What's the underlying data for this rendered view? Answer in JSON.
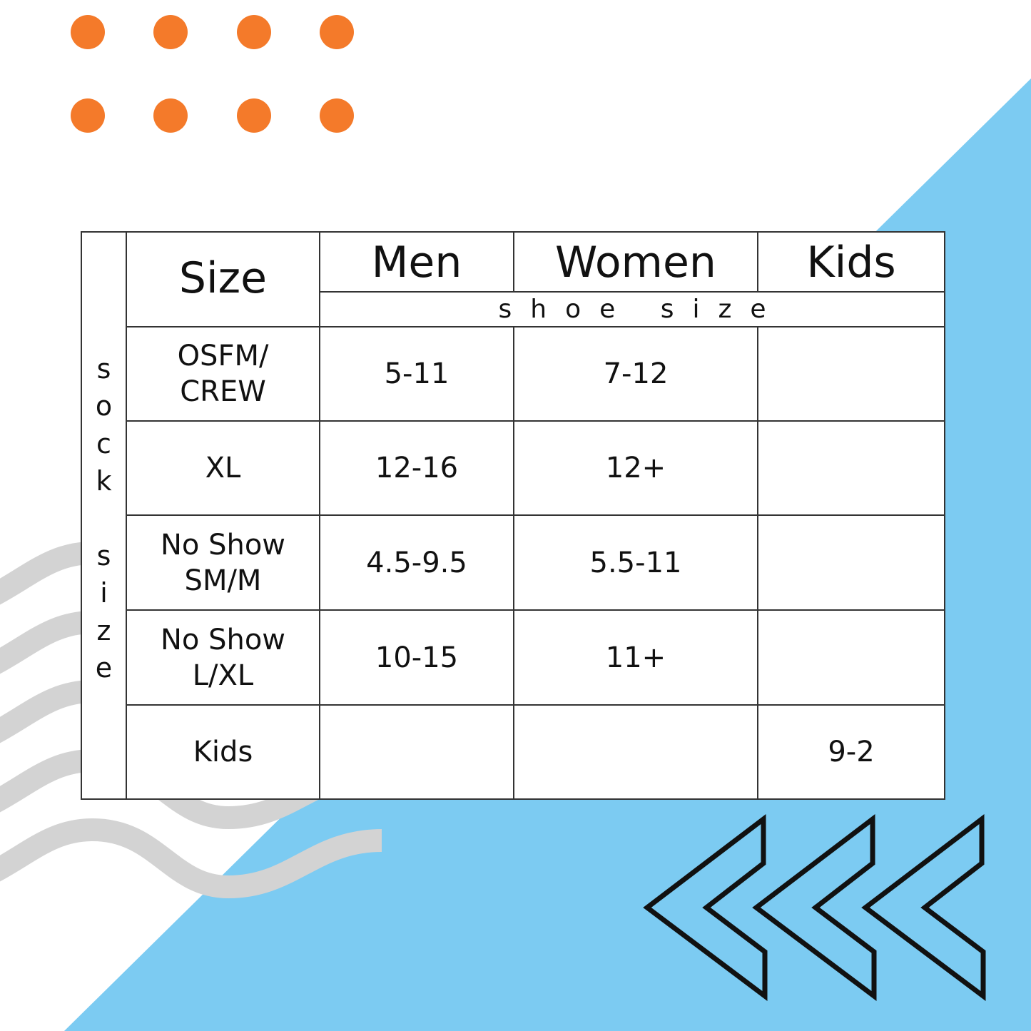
{
  "colors": {
    "dots": "#f47a2a",
    "triangle": "#7ccbf2",
    "waves": "#d3d3d3",
    "chevrons": "#111111",
    "grid": "#333333"
  },
  "side_label": [
    "s",
    "o",
    "c",
    "k",
    "",
    "s",
    "i",
    "z",
    "e"
  ],
  "header": {
    "size": "Size",
    "men": "Men",
    "women": "Women",
    "kids": "Kids",
    "subheader": "shoe size"
  },
  "rows": [
    {
      "size": "OSFM/ CREW",
      "men": "5-11",
      "women": "7-12",
      "kids": ""
    },
    {
      "size": "XL",
      "men": "12-16",
      "women": "12+",
      "kids": ""
    },
    {
      "size": "No Show SM/M",
      "men": "4.5-9.5",
      "women": "5.5-11",
      "kids": ""
    },
    {
      "size": "No Show L/XL",
      "men": "10-15",
      "women": "11+",
      "kids": ""
    },
    {
      "size": "Kids",
      "men": "",
      "women": "",
      "kids": "9-2"
    }
  ]
}
